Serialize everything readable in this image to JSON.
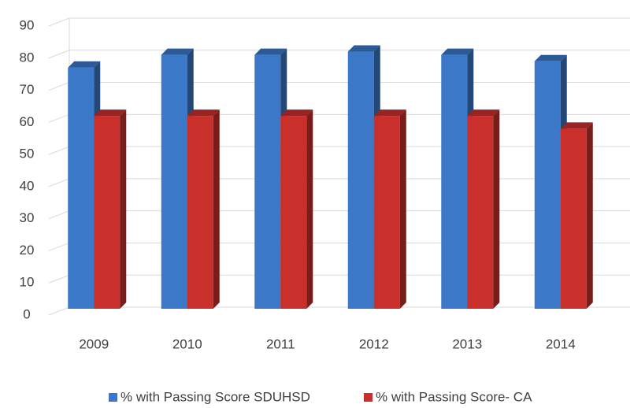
{
  "chart_data": {
    "type": "bar3d",
    "categories": [
      "2009",
      "2010",
      "2011",
      "2012",
      "2013",
      "2014"
    ],
    "series": [
      {
        "name": "% with Passing Score SDUHSD",
        "color": "#3b78c8",
        "values": [
          78,
          82,
          82,
          83,
          82,
          80
        ]
      },
      {
        "name": "% with Passing Score- CA",
        "color": "#c9302c",
        "values": [
          63,
          63,
          63,
          63,
          63,
          59
        ]
      }
    ],
    "ylim": [
      0,
      90
    ],
    "yticks": [
      0,
      10,
      20,
      30,
      40,
      50,
      60,
      70,
      80,
      90
    ],
    "grid": true,
    "legend": "bottom"
  }
}
